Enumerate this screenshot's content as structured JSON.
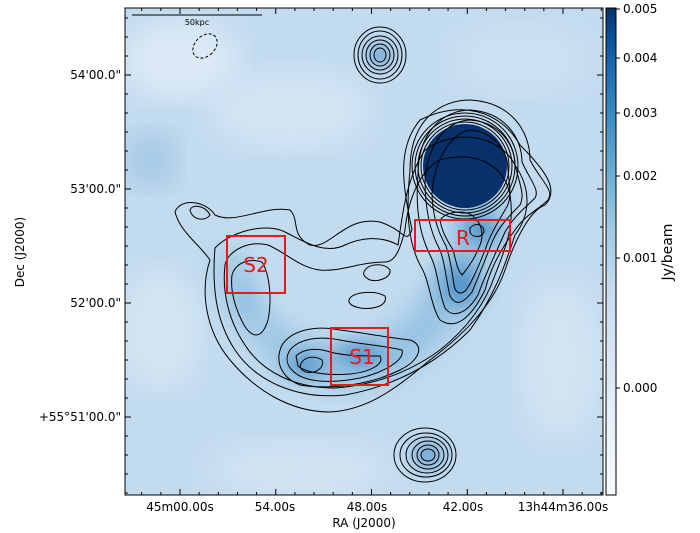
{
  "chart_data": {
    "type": "heatmap",
    "title": "",
    "xlabel": "RA (J2000)",
    "ylabel": "Dec (J2000)",
    "x_ticks": [
      "45m00.00s",
      "54.00s",
      "48.00s",
      "42.00s",
      "13h44m36.00s"
    ],
    "y_ticks": [
      "54'00.0\"",
      "53'00.0\"",
      "52'00.0\"",
      "+55°51'00.0\""
    ],
    "colorbar": {
      "label": "Jy/beam",
      "ticks": [
        "0.005",
        "0.004",
        "0.003",
        "0.002",
        "0.001",
        "0.000"
      ],
      "colormap": "Blues"
    },
    "scalebar_label": "50kpc",
    "regions": [
      {
        "label": "R",
        "color": "#e41a1c"
      },
      {
        "label": "S2",
        "color": "#e41a1c"
      },
      {
        "label": "S1",
        "color": "#e41a1c"
      }
    ],
    "grid": false
  }
}
